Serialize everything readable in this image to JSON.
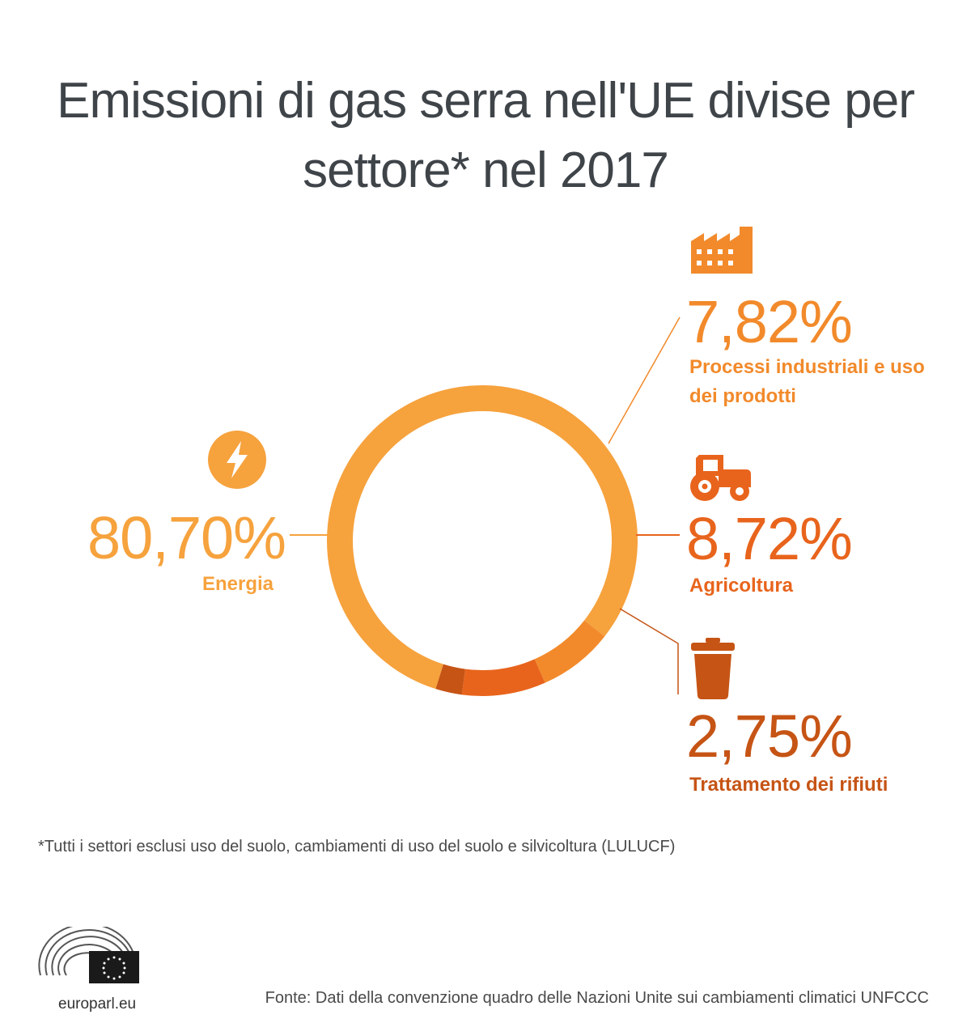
{
  "title_line1": "Emissioni di gas serra nell'UE divise per",
  "title_line2": "settore* nel 2017",
  "chart_data": {
    "type": "pie",
    "variant": "donut",
    "title": "Emissioni di gas serra nell'UE divise per settore* nel 2017",
    "slices": [
      {
        "label": "Energia",
        "value_text": "80,70%",
        "value": 80.7,
        "color": "#f6a23d",
        "icon": "lightning-bolt-icon"
      },
      {
        "label": "Processi industriali e uso dei prodotti",
        "label_line1": "Processi industriali e uso",
        "label_line2": "dei prodotti",
        "value_text": "7,82%",
        "value": 7.82,
        "color": "#f28a2b",
        "icon": "factory-icon"
      },
      {
        "label": "Agricoltura",
        "value_text": "8,72%",
        "value": 8.72,
        "color": "#e8641c",
        "icon": "tractor-icon"
      },
      {
        "label": "Trattamento dei rifiuti",
        "value_text": "2,75%",
        "value": 2.75,
        "color": "#c65415",
        "icon": "trash-bin-icon"
      }
    ]
  },
  "footnote": "*Tutti i settori esclusi uso del suolo, cambiamenti di uso del suolo e silvicoltura (LULUCF)",
  "source": "Fonte: Dati della convenzione quadro delle Nazioni Unite sui cambiamenti climatici UNFCCC",
  "brand": "europarl.eu",
  "colors": {
    "title": "#3f4449",
    "energia": "#f6a23d",
    "industria": "#f28a2b",
    "agricoltura": "#e8641c",
    "rifiuti": "#c65415",
    "eu_blue": "#1a1a1a"
  }
}
